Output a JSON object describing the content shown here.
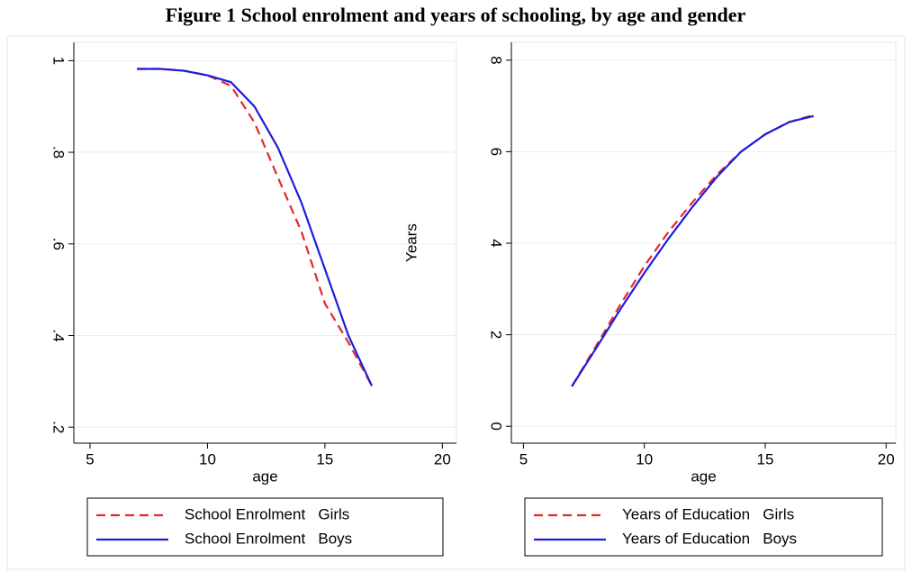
{
  "title": "Figure 1 School enrolment and years of schooling, by age and gender",
  "chart_data": [
    {
      "type": "line",
      "xlabel": "age",
      "x": [
        7,
        8,
        9,
        10,
        11,
        12,
        13,
        14,
        15,
        16,
        17
      ],
      "series": [
        {
          "name": "School Enrolment   Girls",
          "color": "#e8262b",
          "line_style": "dashed",
          "values": [
            0.982,
            0.982,
            0.978,
            0.968,
            0.945,
            0.865,
            0.745,
            0.627,
            0.47,
            0.385,
            0.29
          ]
        },
        {
          "name": "School Enrolment   Boys",
          "color": "#1c1cdc",
          "line_style": "solid",
          "values": [
            0.982,
            0.982,
            0.978,
            0.968,
            0.953,
            0.9,
            0.81,
            0.69,
            0.545,
            0.4,
            0.29
          ]
        }
      ],
      "xlim": [
        4.31,
        20.6
      ],
      "xticks": [
        5,
        10,
        15,
        20
      ],
      "ylim": [
        0.165,
        1.04
      ],
      "yticks": [
        {
          "value": 0.2,
          "label": ".2"
        },
        {
          "value": 0.4,
          "label": ".4"
        },
        {
          "value": 0.6,
          "label": ".6"
        },
        {
          "value": 0.8,
          "label": ".8"
        },
        1
      ],
      "grid": true,
      "legend": "bottom"
    },
    {
      "type": "line",
      "xlabel": "age",
      "ylabel": "Years",
      "x": [
        7,
        8,
        9,
        10,
        11,
        12,
        13,
        14,
        15,
        16,
        17
      ],
      "series": [
        {
          "name": "Years of Education   Girls",
          "color": "#e8262b",
          "line_style": "dashed",
          "values": [
            0.87,
            1.75,
            2.65,
            3.5,
            4.25,
            4.9,
            5.5,
            6.0,
            6.38,
            6.65,
            6.8
          ]
        },
        {
          "name": "Years of Education   Boys",
          "color": "#1c1cdc",
          "line_style": "solid",
          "values": [
            0.87,
            1.7,
            2.55,
            3.35,
            4.1,
            4.8,
            5.45,
            6.0,
            6.38,
            6.65,
            6.78
          ]
        }
      ],
      "xlim": [
        4.5,
        20.4
      ],
      "xticks": [
        5,
        10,
        15,
        20
      ],
      "ylim": [
        -0.37,
        8.39
      ],
      "yticks": [
        0,
        2,
        4,
        6,
        8
      ],
      "grid": true,
      "legend": "bottom"
    }
  ]
}
